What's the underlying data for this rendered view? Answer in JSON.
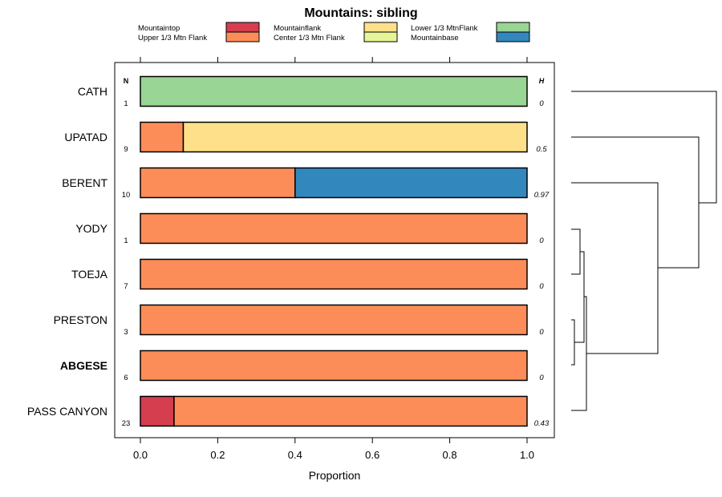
{
  "chart_data": {
    "type": "bar",
    "stacked": true,
    "orientation": "horizontal",
    "title": "Mountains: sibling",
    "xlabel": "Proportion",
    "xlim": [
      0,
      1
    ],
    "xticks": [
      "0.0",
      "0.2",
      "0.4",
      "0.6",
      "0.8",
      "1.0"
    ],
    "xtick_values": [
      0,
      0.2,
      0.4,
      0.6,
      0.8,
      1.0
    ],
    "n_header": "N",
    "h_header": "H",
    "legend": [
      {
        "name": "Mountaintop",
        "color": "#d53e4f"
      },
      {
        "name": "Upper 1/3 Mtn Flank",
        "color": "#fc8d59"
      },
      {
        "name": "Mountainflank",
        "color": "#fee08b"
      },
      {
        "name": "Center 1/3 Mtn Flank",
        "color": "#e6f598"
      },
      {
        "name": "Lower 1/3 MtnFlank",
        "color": "#99d594"
      },
      {
        "name": "Mountainbase",
        "color": "#3288bd"
      }
    ],
    "categories": [
      "CATH",
      "UPATAD",
      "BERENT",
      "YODY",
      "TOEJA",
      "PRESTON",
      "ABGESE",
      "PASS CANYON"
    ],
    "highlighted": "ABGESE",
    "n_values": [
      "1",
      "9",
      "10",
      "1",
      "7",
      "3",
      "6",
      "23"
    ],
    "h_values": [
      "0",
      "0.5",
      "0.97",
      "0",
      "0",
      "0",
      "0",
      "0.43"
    ],
    "series": [
      {
        "name": "Mountaintop",
        "values": [
          0,
          0,
          0,
          0,
          0,
          0,
          0,
          0.087
        ]
      },
      {
        "name": "Upper 1/3 Mtn Flank",
        "values": [
          0,
          0.111,
          0.4,
          1,
          1,
          1,
          1,
          0.913
        ]
      },
      {
        "name": "Mountainflank",
        "values": [
          0,
          0.889,
          0,
          0,
          0,
          0,
          0,
          0
        ]
      },
      {
        "name": "Center 1/3 Mtn Flank",
        "values": [
          0,
          0,
          0,
          0,
          0,
          0,
          0,
          0
        ]
      },
      {
        "name": "Lower 1/3 MtnFlank",
        "values": [
          1,
          0,
          0,
          0,
          0,
          0,
          0,
          0
        ]
      },
      {
        "name": "Mountainbase",
        "values": [
          0,
          0,
          0.6,
          0,
          0,
          0,
          0,
          0
        ]
      }
    ]
  }
}
